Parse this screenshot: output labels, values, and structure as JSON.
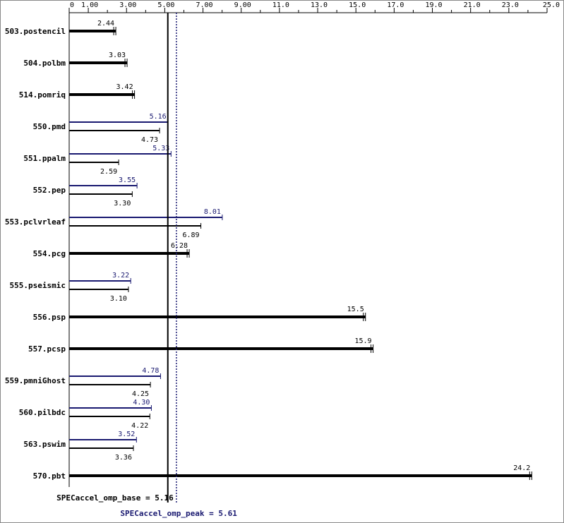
{
  "chart_data": {
    "type": "bar",
    "orientation": "horizontal",
    "xlim": [
      0,
      25.0
    ],
    "x_ticks": [
      {
        "value": 0,
        "label": "0"
      },
      {
        "value": 1.0,
        "label": "1.00"
      },
      {
        "value": 3.0,
        "label": "3.00"
      },
      {
        "value": 5.0,
        "label": "5.00"
      },
      {
        "value": 7.0,
        "label": "7.00"
      },
      {
        "value": 9.0,
        "label": "9.00"
      },
      {
        "value": 11.0,
        "label": "11.0"
      },
      {
        "value": 13.0,
        "label": "13.0"
      },
      {
        "value": 15.0,
        "label": "15.0"
      },
      {
        "value": 17.0,
        "label": "17.0"
      },
      {
        "value": 19.0,
        "label": "19.0"
      },
      {
        "value": 21.0,
        "label": "21.0"
      },
      {
        "value": 23.0,
        "label": "23.0"
      },
      {
        "value": 25.0,
        "label": "25.0"
      }
    ],
    "colors": {
      "base": "#000000",
      "peak": "#191970"
    },
    "benchmarks": [
      {
        "name": "503.postencil",
        "base": 2.44,
        "base_label": "2.44"
      },
      {
        "name": "504.polbm",
        "base": 3.03,
        "base_label": "3.03"
      },
      {
        "name": "514.pomriq",
        "base": 3.42,
        "base_label": "3.42"
      },
      {
        "name": "550.pmd",
        "peak": 5.16,
        "peak_label": "5.16",
        "base": 4.73,
        "base_label": "4.73"
      },
      {
        "name": "551.ppalm",
        "peak": 5.33,
        "peak_label": "5.33",
        "base": 2.59,
        "base_label": "2.59"
      },
      {
        "name": "552.pep",
        "peak": 3.55,
        "peak_label": "3.55",
        "base": 3.3,
        "base_label": "3.30"
      },
      {
        "name": "553.pclvrleaf",
        "peak": 8.01,
        "peak_label": "8.01",
        "base": 6.89,
        "base_label": "6.89"
      },
      {
        "name": "554.pcg",
        "base": 6.28,
        "base_label": "6.28"
      },
      {
        "name": "555.pseismic",
        "peak": 3.22,
        "peak_label": "3.22",
        "base": 3.1,
        "base_label": "3.10"
      },
      {
        "name": "556.psp",
        "base": 15.5,
        "base_label": "15.5"
      },
      {
        "name": "557.pcsp",
        "base": 15.9,
        "base_label": "15.9"
      },
      {
        "name": "559.pmniGhost",
        "peak": 4.78,
        "peak_label": "4.78",
        "base": 4.25,
        "base_label": "4.25"
      },
      {
        "name": "560.pilbdc",
        "peak": 4.3,
        "peak_label": "4.30",
        "base": 4.22,
        "base_label": "4.22"
      },
      {
        "name": "563.pswim",
        "peak": 3.52,
        "peak_label": "3.52",
        "base": 3.36,
        "base_label": "3.36"
      },
      {
        "name": "570.pbt",
        "base": 24.2,
        "base_label": "24.2"
      }
    ],
    "summary": {
      "base": {
        "value": 5.16,
        "label": "SPECaccel_omp_base = 5.16"
      },
      "peak": {
        "value": 5.61,
        "label": "SPECaccel_omp_peak = 5.61"
      }
    }
  }
}
